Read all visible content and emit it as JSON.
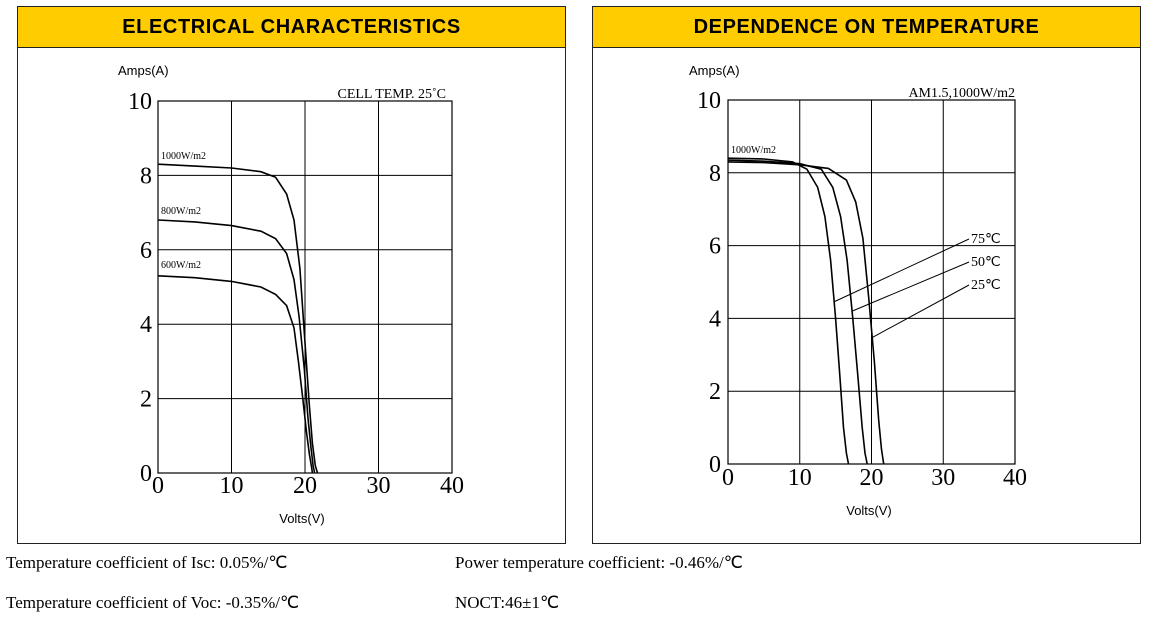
{
  "panels": [
    {
      "title": "ELECTRICAL CHARACTERISTICS"
    },
    {
      "title": "DEPENDENCE ON TEMPERATURE"
    }
  ],
  "chart_data": [
    {
      "type": "line",
      "title": "ELECTRICAL CHARACTERISTICS",
      "annotation": "CELL TEMP. 25˚C",
      "xlabel": "Volts(V)",
      "ylabel": "Amps(A)",
      "xlim": [
        0,
        40
      ],
      "ylim": [
        0,
        10
      ],
      "xticks": [
        "0",
        "10",
        "20",
        "30",
        "40"
      ],
      "yticks": [
        "0",
        "2",
        "4",
        "6",
        "8",
        "10"
      ],
      "grid": true,
      "series": [
        {
          "name": "1000W/m2",
          "x": [
            0,
            5,
            10,
            14,
            16,
            17.5,
            18.5,
            19.3,
            20,
            20.6,
            21,
            21.4,
            21.7
          ],
          "y": [
            8.3,
            8.25,
            8.2,
            8.1,
            7.95,
            7.5,
            6.8,
            5.5,
            3.5,
            1.8,
            0.8,
            0.2,
            0
          ]
        },
        {
          "name": "800W/m2",
          "x": [
            0,
            5,
            10,
            14,
            16,
            17.5,
            18.5,
            19.2,
            19.9,
            20.4,
            20.8,
            21.1,
            21.3
          ],
          "y": [
            6.8,
            6.75,
            6.65,
            6.5,
            6.3,
            5.9,
            5.2,
            4.2,
            2.8,
            1.5,
            0.7,
            0.2,
            0
          ]
        },
        {
          "name": "600W/m2",
          "x": [
            0,
            5,
            10,
            14,
            16,
            17.5,
            18.5,
            19.1,
            19.7,
            20.2,
            20.6,
            20.9,
            21.0
          ],
          "y": [
            5.3,
            5.25,
            5.15,
            5.0,
            4.8,
            4.5,
            3.9,
            3.0,
            2.0,
            1.1,
            0.5,
            0.15,
            0
          ]
        }
      ]
    },
    {
      "type": "line",
      "title": "DEPENDENCE ON TEMPERATURE",
      "annotation": "AM1.5,1000W/m2",
      "irradiance_label": "1000W/m2",
      "xlabel": "Volts(V)",
      "ylabel": "Amps(A)",
      "xlim": [
        0,
        40
      ],
      "ylim": [
        0,
        10
      ],
      "xticks": [
        "0",
        "10",
        "20",
        "30",
        "40"
      ],
      "yticks": [
        "0",
        "2",
        "4",
        "6",
        "8",
        "10"
      ],
      "grid": true,
      "series": [
        {
          "name": "75℃",
          "x": [
            0,
            5,
            9,
            11,
            12.5,
            13.5,
            14.3,
            15,
            15.6,
            16.1,
            16.5,
            16.8
          ],
          "y": [
            8.4,
            8.38,
            8.3,
            8.1,
            7.6,
            6.8,
            5.6,
            4.0,
            2.4,
            1.0,
            0.3,
            0
          ]
        },
        {
          "name": "50℃",
          "x": [
            0,
            5,
            10,
            13,
            14.6,
            15.7,
            16.6,
            17.4,
            18.1,
            18.7,
            19.1,
            19.4
          ],
          "y": [
            8.35,
            8.32,
            8.25,
            8.1,
            7.6,
            6.8,
            5.6,
            4.0,
            2.4,
            1.0,
            0.3,
            0
          ]
        },
        {
          "name": "25℃",
          "x": [
            0,
            5,
            10,
            14,
            16.5,
            17.8,
            18.8,
            19.6,
            20.4,
            21.0,
            21.4,
            21.7
          ],
          "y": [
            8.3,
            8.28,
            8.22,
            8.12,
            7.8,
            7.2,
            6.2,
            4.6,
            2.8,
            1.2,
            0.4,
            0
          ]
        }
      ]
    }
  ],
  "footnotes": {
    "isc": "Temperature coefficient of Isc: 0.05%/℃",
    "voc": "Temperature coefficient of Voc: -0.35%/℃",
    "power": "Power temperature coefficient: -0.46%/℃",
    "noct": "NOCT:46±1℃"
  }
}
